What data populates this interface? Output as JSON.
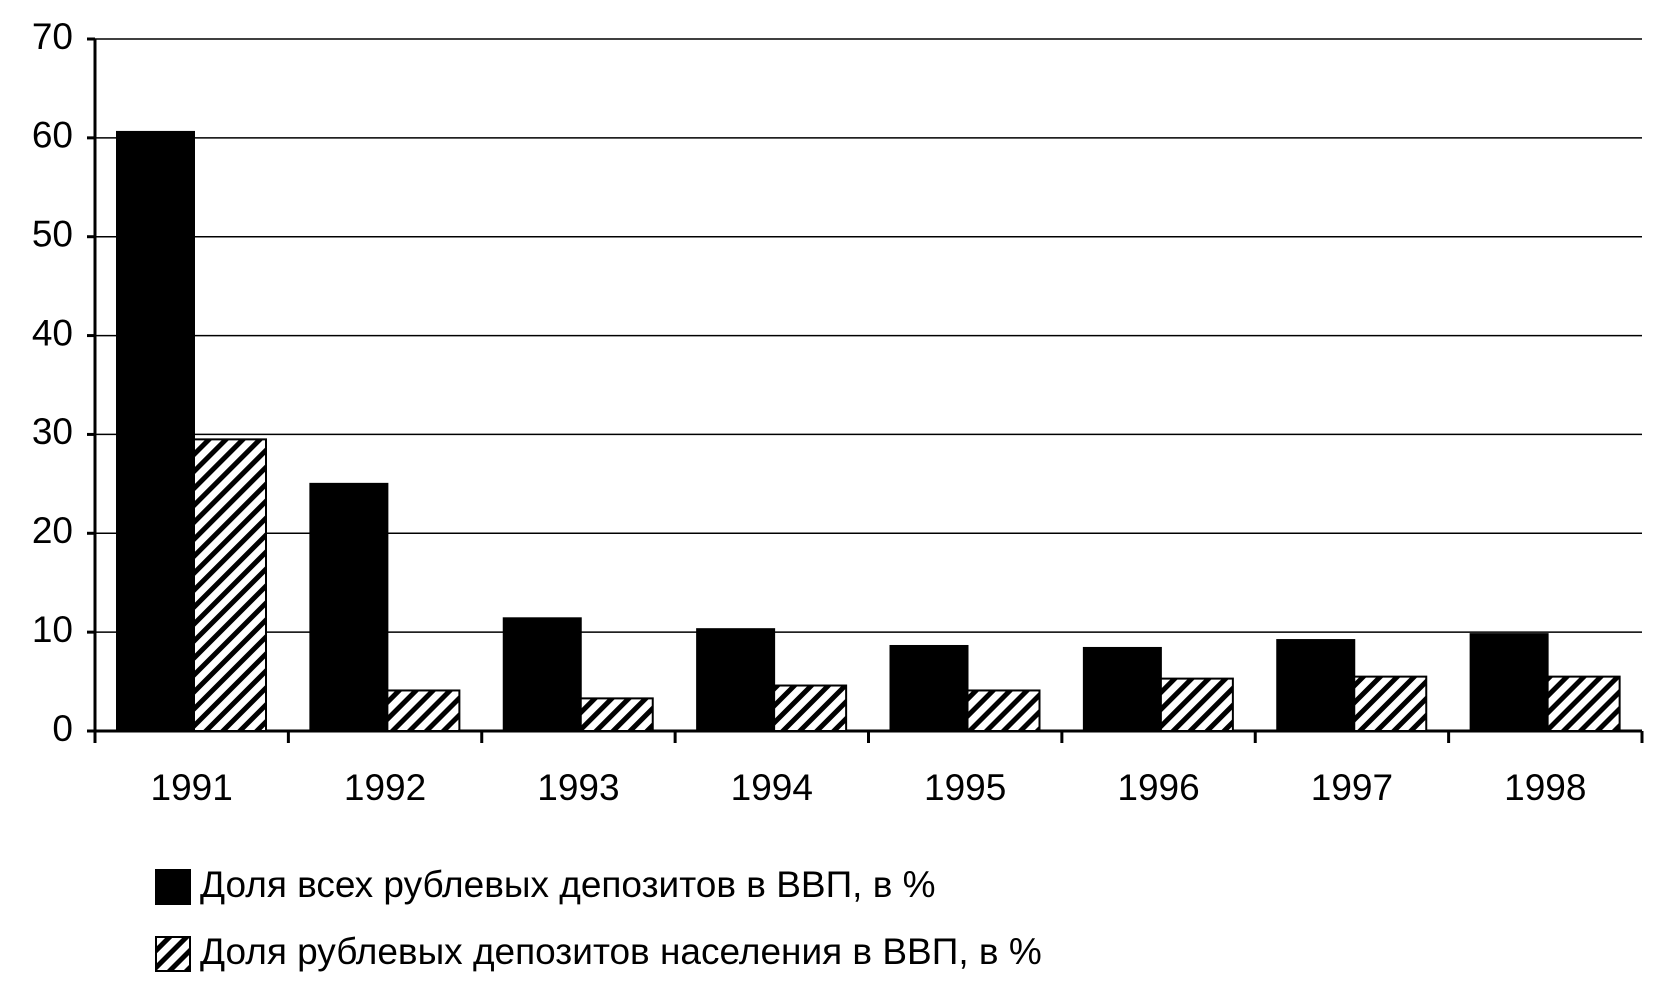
{
  "chart_data": {
    "type": "bar",
    "categories": [
      "1991",
      "1992",
      "1993",
      "1994",
      "1995",
      "1996",
      "1997",
      "1998"
    ],
    "series": [
      {
        "name": "Доля всех рублевых депозитов в ВВП, в %",
        "color": "#000000",
        "fill": "solid",
        "values": [
          60.6,
          25.0,
          11.4,
          10.3,
          8.6,
          8.4,
          9.2,
          9.8
        ]
      },
      {
        "name": "Доля рублевых депозитов населения в ВВП, в %",
        "color": "#000000",
        "fill": "hatch",
        "values": [
          29.5,
          4.1,
          3.3,
          4.6,
          4.1,
          5.3,
          5.5,
          5.5
        ]
      }
    ],
    "ylim": [
      0,
      70
    ],
    "yticks": [
      0,
      10,
      20,
      30,
      40,
      50,
      60,
      70
    ],
    "grid": true,
    "legend": "bottom"
  }
}
